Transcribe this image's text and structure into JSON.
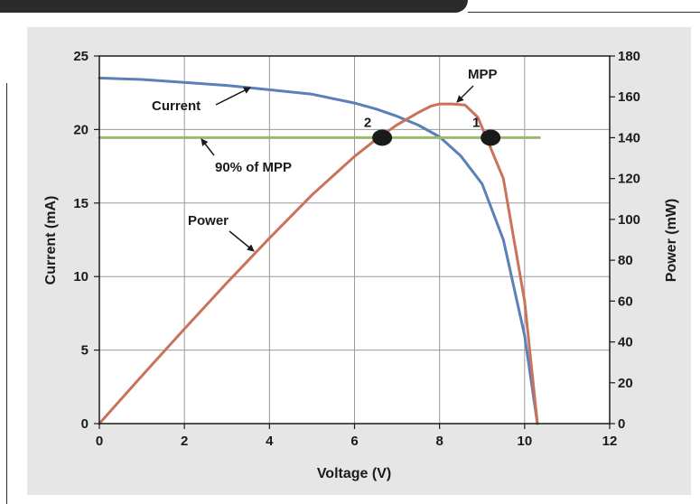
{
  "chart_data": {
    "type": "line",
    "xlabel": "Voltage (V)",
    "ylabel": "Current (mA)",
    "y2label": "Power (mW)",
    "xlim": [
      0,
      12
    ],
    "ylim": [
      0,
      25
    ],
    "y2lim": [
      0,
      180
    ],
    "xticks": [
      "0",
      "2",
      "4",
      "6",
      "8",
      "10",
      "12"
    ],
    "yticks": [
      "0",
      "5",
      "10",
      "15",
      "20",
      "25"
    ],
    "y2ticks": [
      "0",
      "20",
      "40",
      "60",
      "80",
      "100",
      "120",
      "140",
      "160",
      "180"
    ],
    "grid": true,
    "series": [
      {
        "name": "Current",
        "axis": "left",
        "color": "#5b7fb8",
        "x": [
          0,
          1,
          2,
          3,
          4,
          5,
          6,
          6.5,
          7,
          7.5,
          8,
          8.5,
          9,
          9.5,
          10,
          10.3
        ],
        "y": [
          23.5,
          23.4,
          23.2,
          23.0,
          22.7,
          22.4,
          21.8,
          21.4,
          20.9,
          20.3,
          19.5,
          18.2,
          16.3,
          12.5,
          6.0,
          0
        ]
      },
      {
        "name": "Power",
        "axis": "right",
        "color": "#c8735a",
        "x": [
          0,
          1,
          2,
          3,
          4,
          5,
          6,
          6.5,
          7,
          7.5,
          7.8,
          8,
          8.3,
          8.6,
          8.9,
          9.1,
          9.5,
          10,
          10.3
        ],
        "y": [
          0,
          23.4,
          46.4,
          69,
          90.8,
          112,
          130.8,
          139,
          146.3,
          152.3,
          155.5,
          156.5,
          156.5,
          156,
          150,
          140,
          120,
          60,
          0
        ]
      },
      {
        "name": "90% of MPP",
        "axis": "right",
        "color": "#9cb86a",
        "x": [
          0,
          10.35
        ],
        "y": [
          140,
          140
        ]
      }
    ],
    "points": [
      {
        "label": "2",
        "x": 6.65,
        "y2": 140
      },
      {
        "label": "1",
        "x": 9.2,
        "y2": 140
      }
    ],
    "annotations": [
      "Current",
      "Power",
      "MPP",
      "90% of MPP"
    ]
  }
}
